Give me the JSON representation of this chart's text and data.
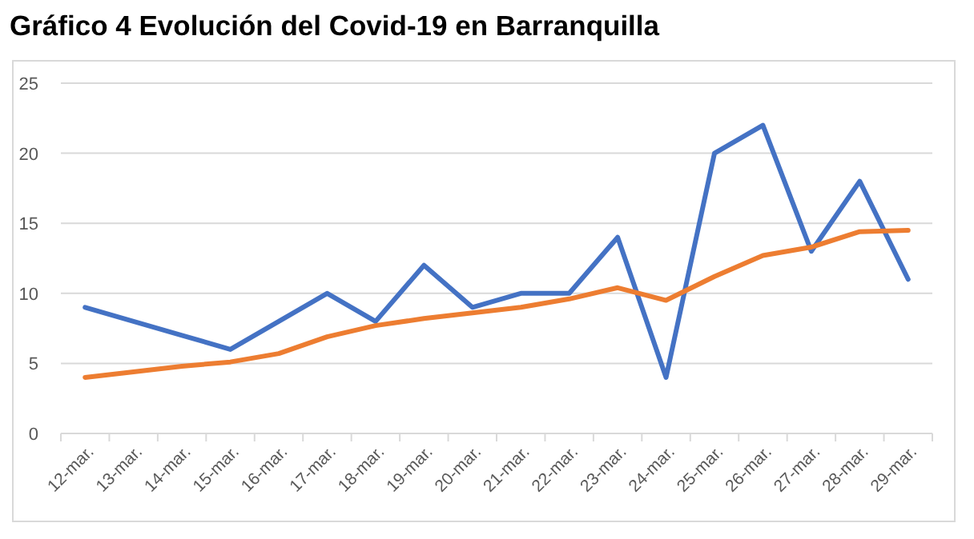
{
  "chart_data": {
    "type": "line",
    "title": "Gráfico 4 Evolución del Covid-19 en Barranquilla",
    "categories": [
      "12-mar.",
      "13-mar.",
      "14-mar.",
      "15-mar.",
      "16-mar.",
      "17-mar.",
      "18-mar.",
      "19-mar.",
      "20-mar.",
      "21-mar.",
      "22-mar.",
      "23-mar.",
      "24-mar.",
      "25-mar.",
      "26-mar.",
      "27-mar.",
      "28-mar.",
      "29-mar."
    ],
    "series": [
      {
        "color": "#4472c4",
        "values": [
          9,
          8,
          7,
          6,
          8,
          10,
          8,
          12,
          9,
          10,
          10,
          14,
          4,
          20,
          22,
          13,
          18,
          11
        ]
      },
      {
        "color": "#ed7d31",
        "values": [
          4,
          4.4,
          4.8,
          5.1,
          5.7,
          6.9,
          7.7,
          8.2,
          8.6,
          9,
          9.6,
          10.4,
          9.5,
          11.2,
          12.7,
          13.3,
          14.4,
          14.5
        ]
      }
    ],
    "ylim": [
      0,
      25
    ],
    "yticks": [
      0,
      5,
      10,
      15,
      20,
      25
    ],
    "grid": "y",
    "marker": "none",
    "line_style": "solid"
  }
}
